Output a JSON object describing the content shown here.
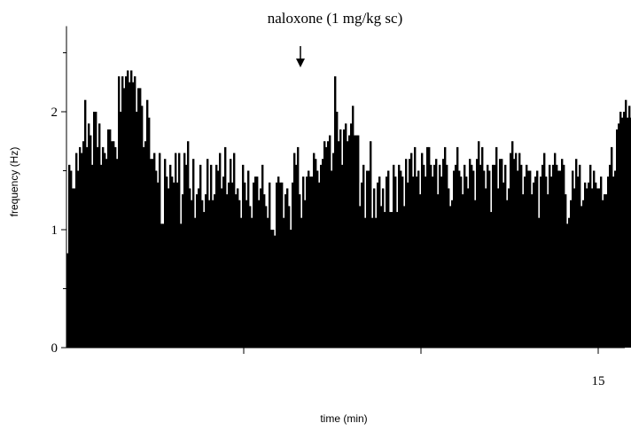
{
  "chart_data": {
    "type": "bar",
    "title": "",
    "xlabel": "time (min)",
    "ylabel": "frequency (Hz)",
    "xlim": [
      0,
      15.5
    ],
    "ylim": [
      0,
      2.5
    ],
    "y_ticks": [
      0,
      1,
      2
    ],
    "y_tick_labels": [
      "0",
      "1",
      "2"
    ],
    "y_minor_ticks": [
      0.5,
      1.5,
      2.5
    ],
    "x_ticks": [
      5,
      10,
      15
    ],
    "x_tick_labels": [
      "",
      "",
      "15"
    ],
    "bar_color": "#000000",
    "annotation": {
      "text": "naloxone (1 mg/kg sc)",
      "x": 6.6
    },
    "bin_width_min": 0.05,
    "values": [
      0.8,
      1.55,
      1.5,
      1.35,
      1.35,
      1.65,
      1.5,
      1.7,
      1.65,
      1.75,
      2.1,
      1.7,
      1.9,
      1.8,
      1.55,
      2.0,
      2.0,
      1.7,
      1.9,
      1.55,
      1.7,
      1.65,
      1.6,
      1.85,
      1.85,
      1.75,
      1.75,
      1.7,
      1.6,
      2.3,
      2.0,
      2.3,
      2.2,
      2.3,
      2.35,
      2.25,
      2.35,
      2.25,
      2.3,
      2.0,
      2.2,
      2.2,
      2.05,
      1.7,
      1.75,
      2.1,
      1.95,
      1.6,
      1.6,
      1.65,
      1.5,
      1.4,
      1.65,
      1.05,
      1.05,
      1.6,
      1.45,
      1.35,
      1.55,
      1.45,
      1.4,
      1.65,
      1.4,
      1.65,
      1.05,
      1.3,
      1.65,
      1.55,
      1.75,
      1.35,
      1.25,
      1.6,
      1.1,
      1.3,
      1.35,
      1.55,
      1.25,
      1.15,
      1.3,
      1.6,
      1.25,
      1.55,
      1.25,
      1.3,
      1.55,
      1.5,
      1.65,
      1.35,
      1.45,
      1.7,
      1.3,
      1.4,
      1.6,
      1.4,
      1.65,
      1.3,
      1.35,
      1.25,
      1.1,
      1.55,
      1.4,
      1.25,
      1.5,
      1.2,
      1.1,
      1.4,
      1.45,
      1.45,
      1.25,
      1.35,
      1.55,
      1.3,
      1.2,
      1.1,
      1.4,
      1.0,
      1.0,
      0.95,
      1.4,
      1.45,
      1.4,
      1.4,
      1.1,
      1.3,
      1.35,
      1.2,
      1.0,
      1.4,
      1.65,
      1.55,
      1.7,
      1.3,
      1.1,
      1.45,
      1.25,
      1.45,
      1.5,
      1.45,
      1.45,
      1.65,
      1.6,
      1.5,
      1.4,
      1.55,
      1.6,
      1.75,
      1.7,
      1.75,
      1.8,
      1.5,
      1.65,
      2.3,
      2.0,
      1.75,
      1.85,
      1.55,
      1.85,
      1.9,
      1.75,
      1.8,
      1.9,
      2.05,
      1.8,
      1.8,
      1.8,
      1.2,
      1.4,
      1.55,
      1.1,
      1.5,
      1.5,
      1.75,
      1.1,
      1.35,
      1.1,
      1.4,
      1.45,
      1.2,
      1.35,
      1.15,
      1.45,
      1.5,
      1.15,
      1.15,
      1.55,
      1.45,
      1.15,
      1.55,
      1.5,
      1.45,
      1.2,
      1.6,
      1.4,
      1.6,
      1.65,
      1.45,
      1.7,
      1.45,
      1.5,
      1.3,
      1.65,
      1.55,
      1.45,
      1.7,
      1.7,
      1.55,
      1.45,
      1.55,
      1.6,
      1.3,
      1.55,
      1.45,
      1.6,
      1.7,
      1.55,
      1.35,
      1.2,
      1.25,
      1.5,
      1.55,
      1.7,
      1.5,
      1.45,
      1.3,
      1.55,
      1.45,
      1.35,
      1.6,
      1.55,
      1.5,
      1.25,
      1.6,
      1.75,
      1.55,
      1.7,
      1.5,
      1.35,
      1.55,
      1.5,
      1.15,
      1.55,
      1.55,
      1.7,
      1.35,
      1.6,
      1.6,
      1.4,
      1.55,
      1.25,
      1.35,
      1.65,
      1.75,
      1.6,
      1.65,
      1.5,
      1.65,
      1.55,
      1.3,
      1.45,
      1.55,
      1.5,
      1.5,
      1.3,
      1.4,
      1.45,
      1.5,
      1.1,
      1.45,
      1.55,
      1.65,
      1.45,
      1.3,
      1.55,
      1.45,
      1.55,
      1.65,
      1.55,
      1.5,
      1.5,
      1.6,
      1.55,
      1.3,
      1.05,
      1.1,
      1.25,
      1.5,
      1.35,
      1.6,
      1.45,
      1.55,
      1.2,
      1.25,
      1.4,
      1.35,
      1.4,
      1.55,
      1.35,
      1.5,
      1.4,
      1.35,
      1.35,
      1.45,
      1.25,
      1.3,
      1.3,
      1.45,
      1.55,
      1.7,
      1.45,
      1.5,
      1.85,
      1.9,
      2.0,
      1.95,
      2.0,
      2.1,
      1.95,
      2.05,
      1.95,
      1.9,
      1.85,
      1.75,
      1.85,
      1.7,
      1.75,
      1.55,
      1.45,
      1.65,
      1.65,
      1.55,
      1.35,
      1.5,
      1.5,
      1.35,
      1.65,
      1.45,
      1.6,
      1.45,
      1.5,
      1.4,
      1.25,
      1.45,
      1.55,
      1.45,
      1.35,
      1.6,
      1.4,
      1.55,
      1.45,
      1.7,
      1.45,
      1.3,
      1.6,
      1.45,
      1.5,
      1.4,
      1.3,
      1.35,
      1.5,
      1.3,
      1.6,
      1.45,
      1.55,
      1.45,
      1.35,
      1.5,
      1.65,
      1.35,
      1.55,
      1.45,
      1.4,
      1.55,
      1.55,
      1.4,
      1.55,
      1.45,
      1.5,
      1.65,
      1.45,
      1.3,
      1.6,
      1.5,
      1.55,
      1.4,
      1.45,
      1.3,
      1.5,
      1.6,
      1.4,
      1.6,
      1.45,
      1.6,
      1.5,
      1.6,
      1.55,
      1.4,
      1.35,
      0.6
    ]
  }
}
